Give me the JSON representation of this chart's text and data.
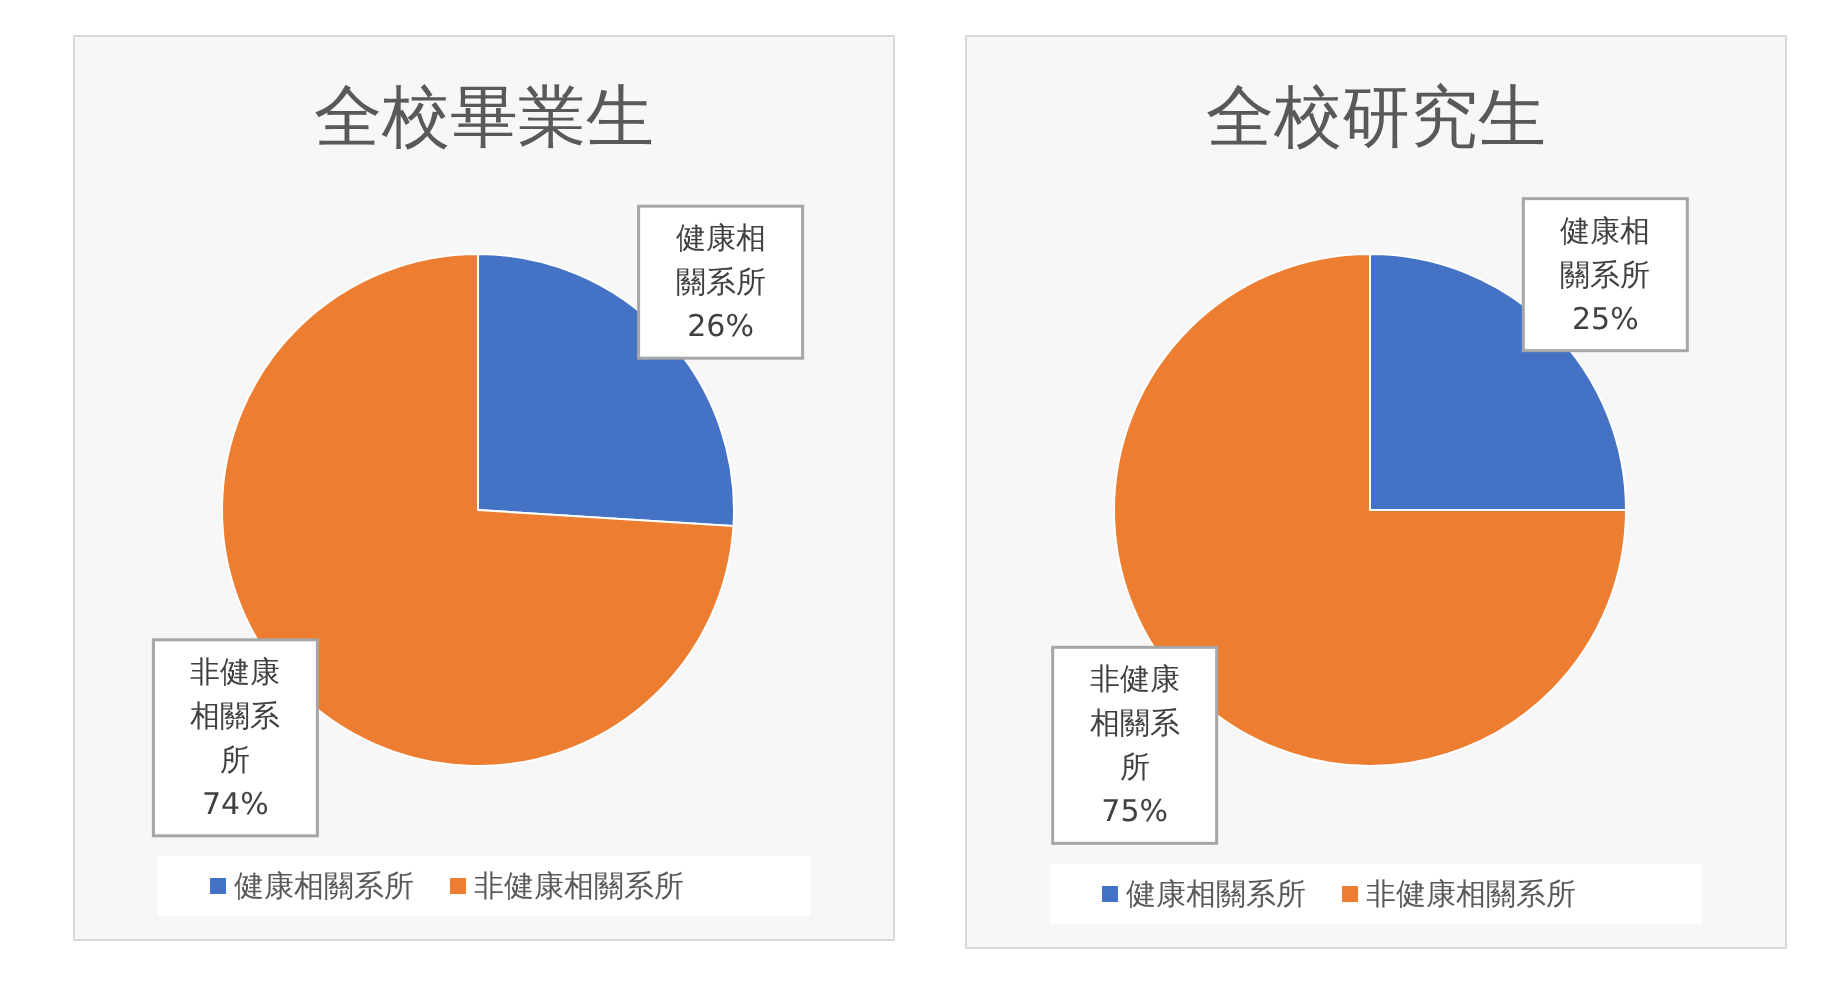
{
  "chart_data": [
    {
      "type": "pie",
      "title": "全校畢業生",
      "categories": [
        "健康相關系所",
        "非健康相關系所"
      ],
      "values": [
        26,
        74
      ],
      "value_labels": [
        "26%",
        "74%"
      ],
      "colors": [
        "#4472c4",
        "#ed7d31"
      ],
      "legend": "bottom"
    },
    {
      "type": "pie",
      "title": "全校研究生",
      "categories": [
        "健康相關系所",
        "非健康相關系所"
      ],
      "values": [
        25,
        75
      ],
      "value_labels": [
        "25%",
        "75%"
      ],
      "colors": [
        "#4472c4",
        "#ed7d31"
      ],
      "legend": "bottom"
    }
  ]
}
